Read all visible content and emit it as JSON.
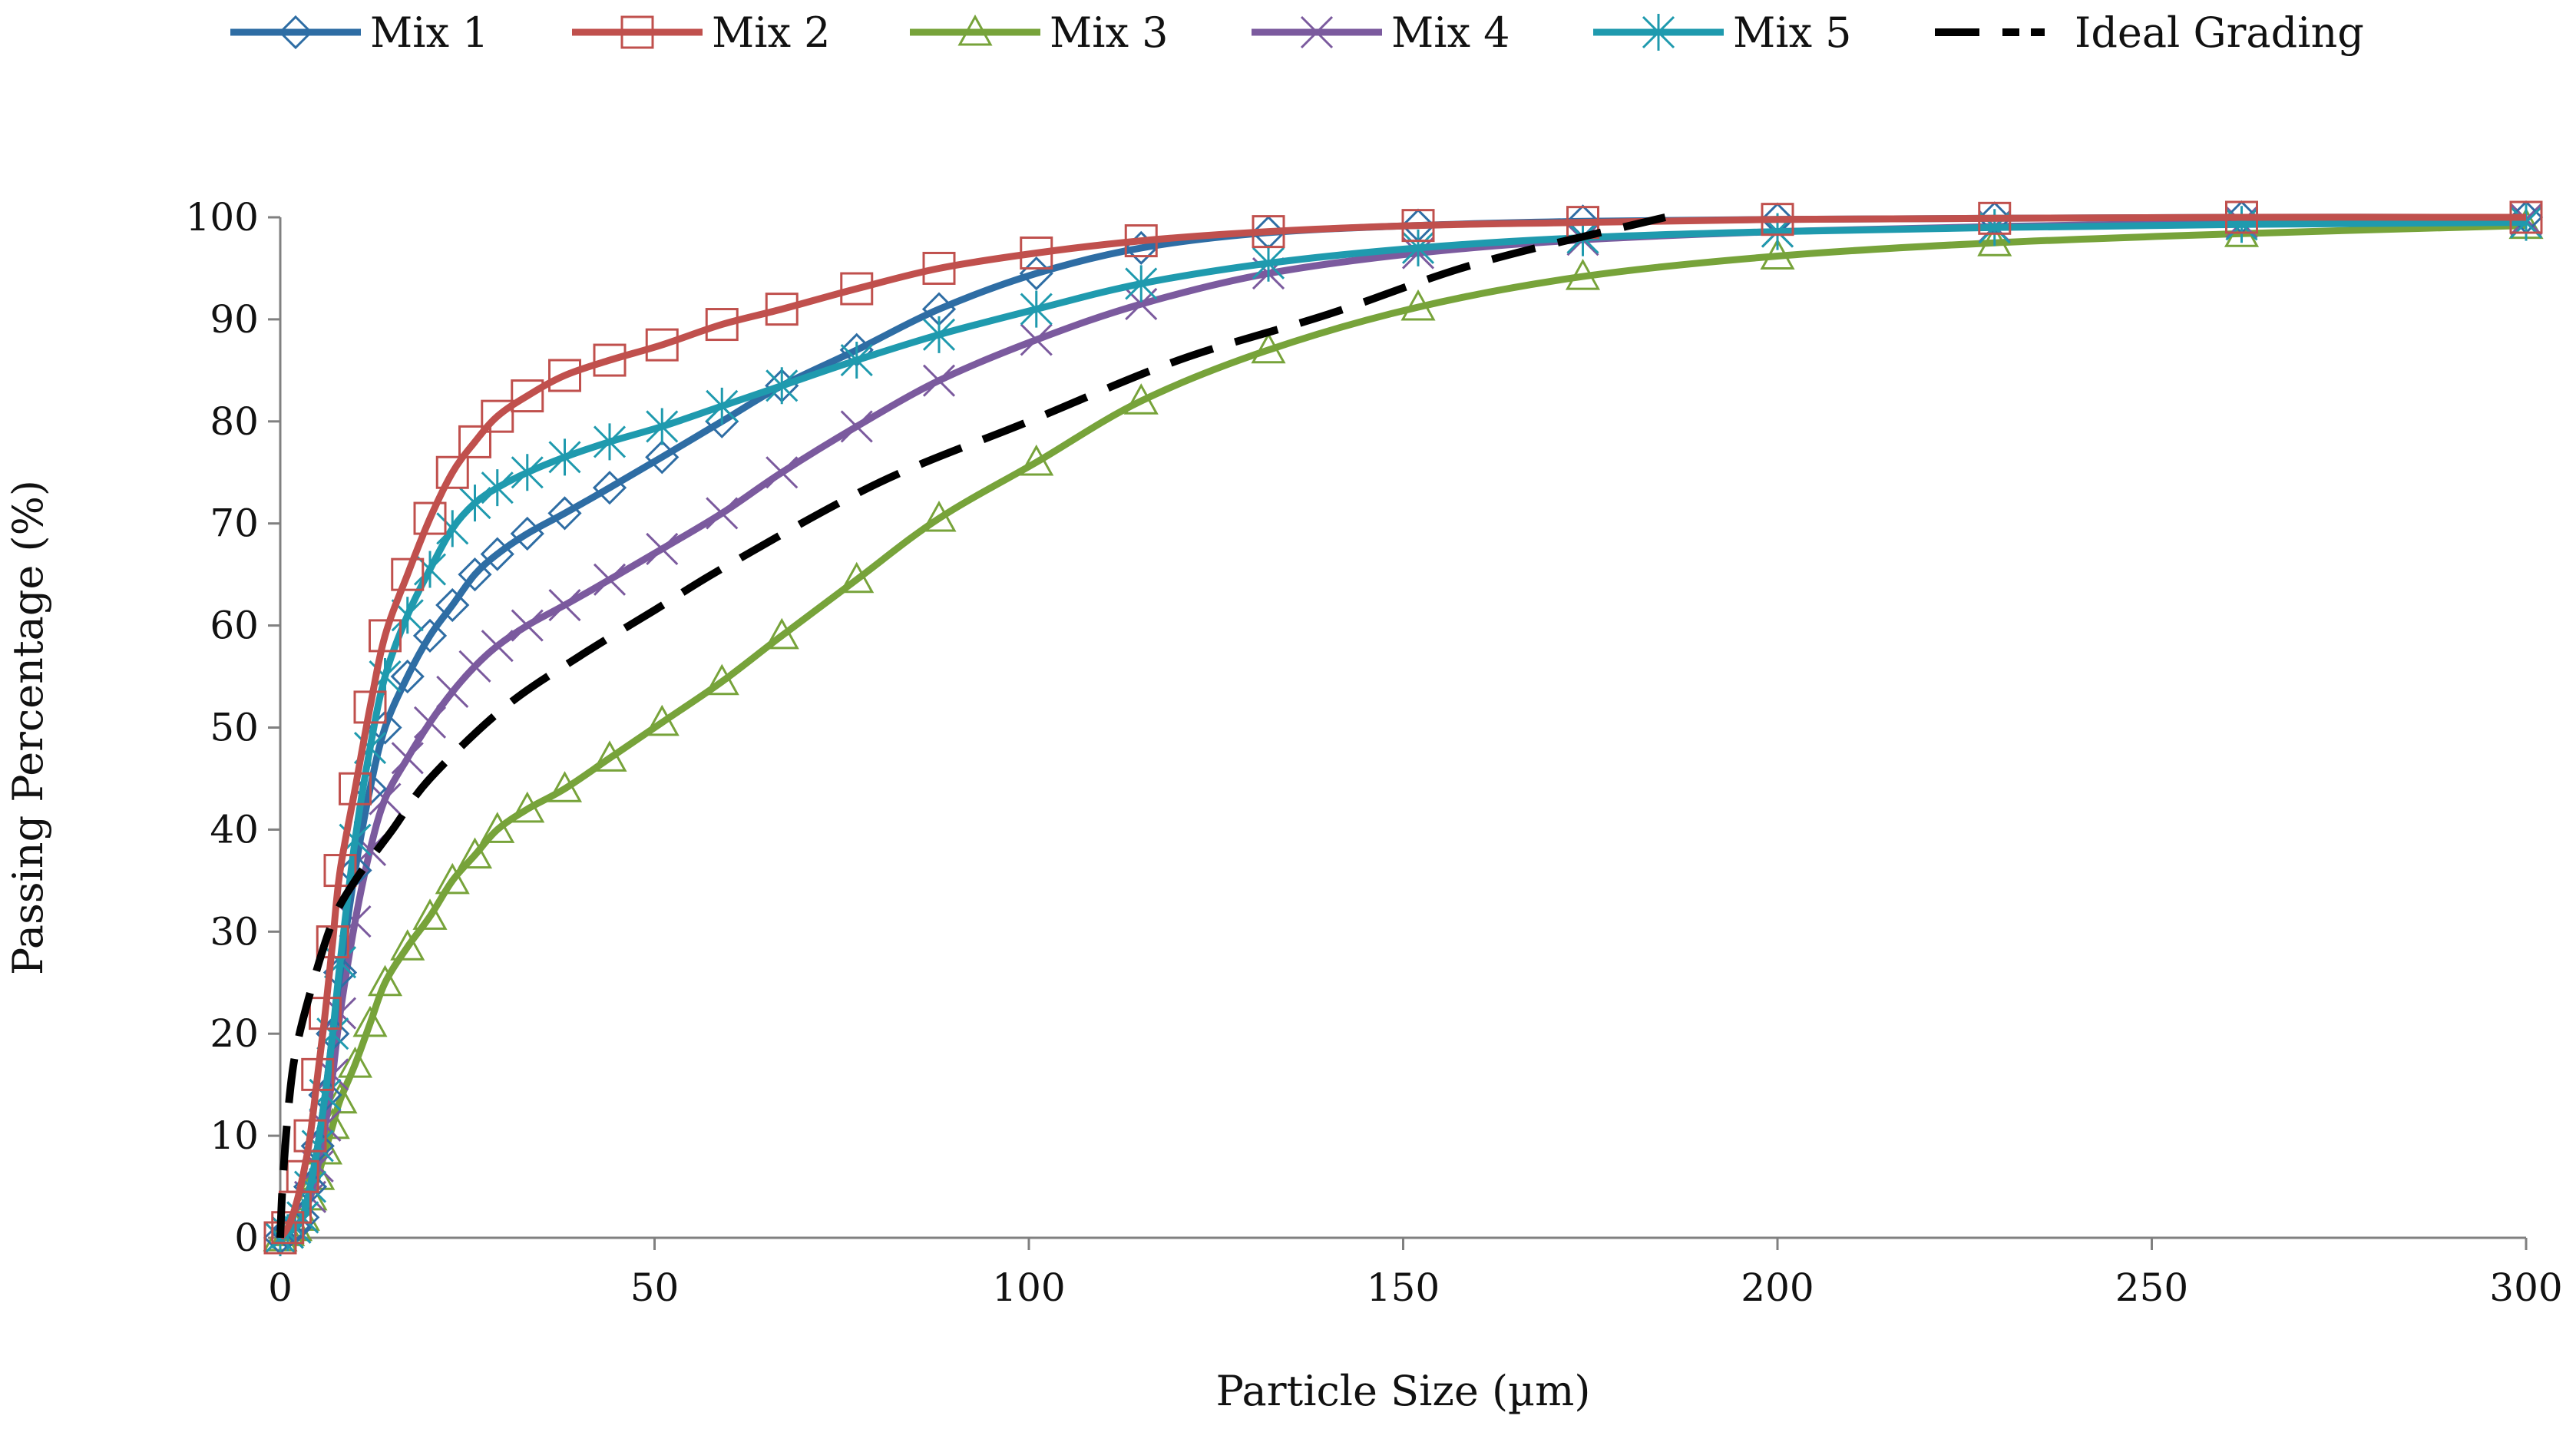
{
  "chart_data": {
    "type": "line",
    "title": "",
    "xlabel": "Particle Size (µm)",
    "ylabel": "Passing Percentage (%)",
    "xlim": [
      0,
      300
    ],
    "ylim": [
      0,
      100
    ],
    "xticks": [
      "0",
      "50",
      "100",
      "150",
      "200",
      "250",
      "300"
    ],
    "yticks": [
      "0",
      "10",
      "20",
      "30",
      "40",
      "50",
      "60",
      "70",
      "80",
      "90",
      "100"
    ],
    "grid": false,
    "legend": "top",
    "series": [
      {
        "name": "Mix 1",
        "color": "#2E6DA4",
        "marker": "diamond",
        "x": [
          0,
          1,
          2,
          3,
          4,
          5,
          6,
          7,
          8,
          10,
          12,
          14,
          17,
          20,
          23,
          26,
          29,
          33,
          38,
          44,
          51,
          59,
          67,
          77,
          88,
          101,
          115,
          132,
          152,
          174,
          200,
          229,
          262,
          300
        ],
        "y": [
          0,
          0.5,
          1,
          2,
          5,
          9,
          14,
          20,
          26,
          36,
          44,
          50,
          55,
          59,
          62,
          65,
          67,
          69,
          71,
          73.5,
          76.5,
          80,
          83.5,
          87,
          91,
          94.5,
          97,
          98.5,
          99.2,
          99.6,
          99.8,
          99.9,
          100,
          100
        ]
      },
      {
        "name": "Mix 2",
        "color": "#C0504D",
        "marker": "square",
        "x": [
          0,
          1,
          2,
          3,
          4,
          5,
          6,
          7,
          8,
          10,
          12,
          14,
          17,
          20,
          23,
          26,
          29,
          33,
          38,
          44,
          51,
          59,
          67,
          77,
          88,
          101,
          115,
          132,
          152,
          174,
          200,
          229,
          262,
          300
        ],
        "y": [
          0,
          1,
          3,
          6,
          10,
          16,
          22,
          29,
          36,
          44,
          52,
          59,
          65,
          70.5,
          75,
          78,
          80.5,
          82.5,
          84.5,
          86,
          87.5,
          89.5,
          91,
          93,
          95,
          96.5,
          97.7,
          98.6,
          99.2,
          99.5,
          99.8,
          99.9,
          100,
          100
        ]
      },
      {
        "name": "Mix 3",
        "color": "#77A33A",
        "marker": "triangle",
        "x": [
          0,
          1,
          2,
          3,
          4,
          5,
          6,
          7,
          8,
          10,
          12,
          14,
          17,
          20,
          23,
          26,
          29,
          33,
          38,
          44,
          51,
          59,
          67,
          77,
          88,
          101,
          115,
          132,
          152,
          174,
          200,
          229,
          262,
          300
        ],
        "y": [
          0,
          0.5,
          1,
          2,
          4,
          6,
          8.5,
          11,
          13.5,
          17,
          21,
          25,
          28.5,
          31.5,
          35,
          37.5,
          40,
          42,
          44,
          47,
          50.5,
          54.5,
          59,
          64.5,
          70.5,
          76,
          82,
          87,
          91.2,
          94.2,
          96.2,
          97.5,
          98.4,
          99.2
        ]
      },
      {
        "name": "Mix 4",
        "color": "#7B5A9E",
        "marker": "x",
        "x": [
          0,
          1,
          2,
          3,
          4,
          5,
          6,
          7,
          8,
          10,
          12,
          14,
          17,
          20,
          23,
          26,
          29,
          33,
          38,
          44,
          51,
          59,
          67,
          77,
          88,
          101,
          115,
          132,
          152,
          174,
          200,
          229,
          262,
          300
        ],
        "y": [
          0,
          0.5,
          1,
          2,
          4,
          7,
          11,
          16,
          22,
          31,
          38,
          43,
          47,
          50.5,
          53.5,
          56,
          58,
          60,
          62,
          64.5,
          67.5,
          71,
          75,
          79.5,
          84,
          88,
          91.5,
          94.5,
          96.5,
          97.8,
          98.6,
          99.1,
          99.5,
          99.8
        ]
      },
      {
        "name": "Mix 5",
        "color": "#1F9AAE",
        "marker": "asterisk",
        "x": [
          0,
          1,
          2,
          3,
          4,
          5,
          6,
          7,
          8,
          10,
          12,
          14,
          17,
          20,
          23,
          26,
          29,
          33,
          38,
          44,
          51,
          59,
          67,
          77,
          88,
          101,
          115,
          132,
          152,
          174,
          200,
          229,
          262,
          300
        ],
        "y": [
          0,
          0.5,
          1,
          2,
          5,
          9,
          14,
          20,
          27,
          39,
          48,
          55,
          61,
          65.5,
          69.5,
          72,
          73.5,
          75,
          76.5,
          78,
          79.5,
          81.5,
          83.5,
          86,
          88.5,
          91,
          93.5,
          95.5,
          97,
          98,
          98.6,
          99,
          99.3,
          99.5
        ]
      },
      {
        "name": "Ideal Grading",
        "color": "#000000",
        "marker": "none",
        "dashed": true,
        "x": [
          0,
          0.3,
          1,
          2,
          4,
          7,
          10,
          15,
          20,
          30,
          40,
          50,
          60,
          80,
          100,
          120,
          140,
          160,
          185
        ],
        "y": [
          0,
          5,
          12,
          18,
          24,
          31,
          35,
          40,
          45,
          52,
          57,
          61.5,
          66,
          74,
          80,
          86,
          90.5,
          95.5,
          100
        ]
      }
    ]
  }
}
